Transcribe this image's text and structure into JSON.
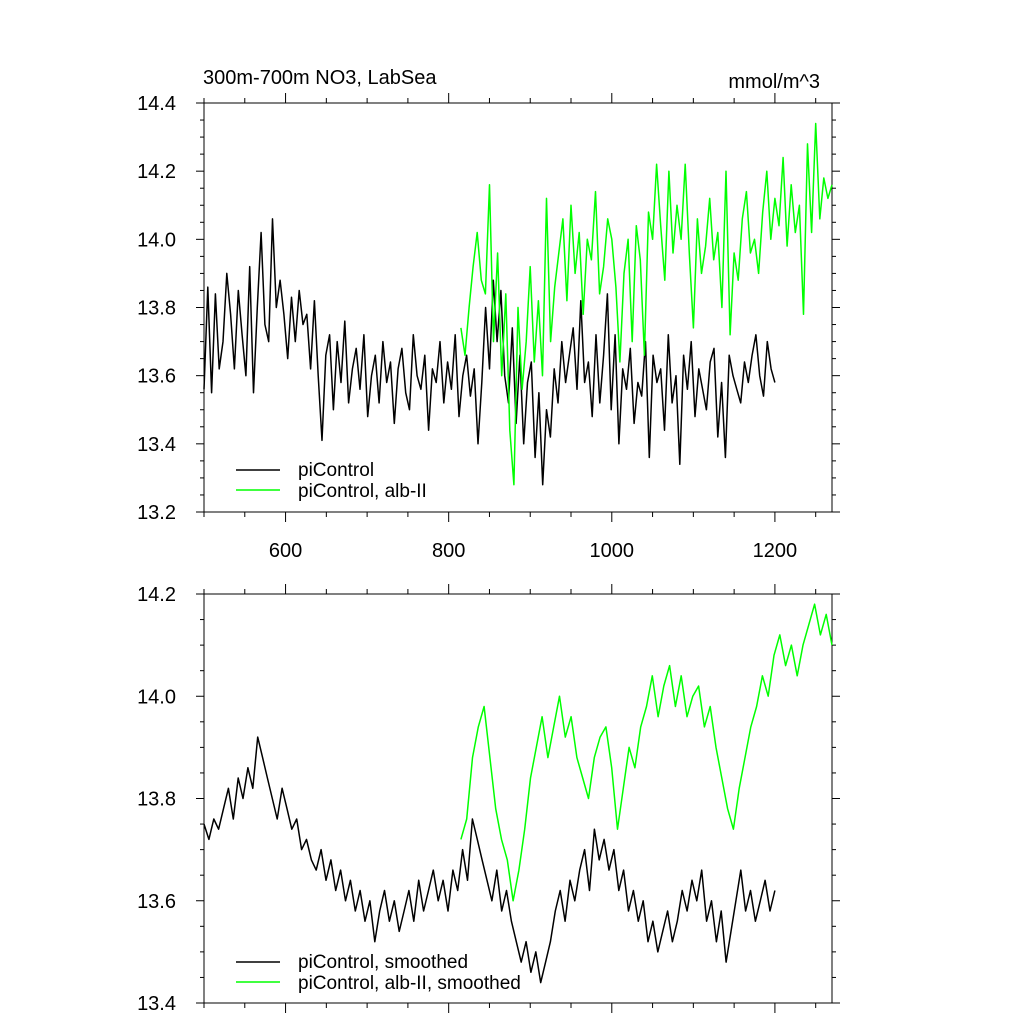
{
  "chart_data": [
    {
      "type": "line",
      "title": "300m-700m NO3, LabSea",
      "units_label": "mmol/m^3",
      "xlim": [
        500,
        1270
      ],
      "ylim": [
        13.2,
        14.4
      ],
      "x_ticks": [
        600,
        800,
        1000,
        1200
      ],
      "x_tick_labels": [
        "600",
        "800",
        "1000",
        "1200"
      ],
      "y_ticks": [
        13.2,
        13.4,
        13.6,
        13.8,
        14.0,
        14.2,
        14.4
      ],
      "y_tick_labels": [
        "13.2",
        "13.4",
        "13.6",
        "13.8",
        "14.0",
        "14.2",
        "14.4"
      ],
      "legend_position": "bottom-left",
      "series": [
        {
          "name": "piControl",
          "color": "#000000",
          "x_start": 500,
          "x_end": 1200,
          "values": [
            13.56,
            13.86,
            13.55,
            13.84,
            13.62,
            13.7,
            13.9,
            13.78,
            13.62,
            13.85,
            13.72,
            13.6,
            13.92,
            13.55,
            13.8,
            14.02,
            13.75,
            13.7,
            14.06,
            13.8,
            13.88,
            13.78,
            13.65,
            13.83,
            13.7,
            13.85,
            13.75,
            13.78,
            13.62,
            13.82,
            13.6,
            13.41,
            13.66,
            13.72,
            13.5,
            13.7,
            13.58,
            13.76,
            13.52,
            13.62,
            13.68,
            13.56,
            13.72,
            13.48,
            13.6,
            13.66,
            13.52,
            13.7,
            13.58,
            13.64,
            13.46,
            13.62,
            13.68,
            13.55,
            13.5,
            13.72,
            13.6,
            13.56,
            13.66,
            13.44,
            13.62,
            13.58,
            13.7,
            13.52,
            13.64,
            13.56,
            13.72,
            13.48,
            13.6,
            13.66,
            13.54,
            13.62,
            13.4,
            13.58,
            13.8,
            13.62,
            13.88,
            13.7,
            13.85,
            13.6,
            13.52,
            13.74,
            13.46,
            13.66,
            13.4,
            13.58,
            13.64,
            13.36,
            13.55,
            13.28,
            13.5,
            13.42,
            13.62,
            13.52,
            13.7,
            13.58,
            13.66,
            13.74,
            13.56,
            13.82,
            13.58,
            13.64,
            13.48,
            13.72,
            13.52,
            13.66,
            13.84,
            13.5,
            13.72,
            13.4,
            13.62,
            13.56,
            13.68,
            13.46,
            13.58,
            13.54,
            13.7,
            13.36,
            13.66,
            13.58,
            13.62,
            13.44,
            13.72,
            13.52,
            13.6,
            13.34,
            13.66,
            13.56,
            13.7,
            13.48,
            13.62,
            13.56,
            13.5,
            13.64,
            13.68,
            13.42,
            13.58,
            13.36,
            13.66,
            13.6,
            13.56,
            13.52,
            13.64,
            13.58,
            13.66,
            13.72,
            13.6,
            13.54,
            13.7,
            13.62,
            13.58
          ]
        },
        {
          "name": "piControl, alb-II",
          "color": "#00ff00",
          "x_start": 815,
          "x_end": 1270,
          "values": [
            13.74,
            13.66,
            13.8,
            13.92,
            14.02,
            13.88,
            13.84,
            14.16,
            13.7,
            13.96,
            13.6,
            13.84,
            13.44,
            13.28,
            13.8,
            13.56,
            13.7,
            13.92,
            13.64,
            13.82,
            13.6,
            14.12,
            13.7,
            13.86,
            13.96,
            14.06,
            13.82,
            14.1,
            13.9,
            14.02,
            13.78,
            14.0,
            13.94,
            14.14,
            13.84,
            13.92,
            14.06,
            14.0,
            13.86,
            13.64,
            13.9,
            14.0,
            13.7,
            14.04,
            13.94,
            13.66,
            14.08,
            14.0,
            14.22,
            14.04,
            13.88,
            14.2,
            13.96,
            14.1,
            14.0,
            14.22,
            13.96,
            13.74,
            14.06,
            13.9,
            13.98,
            14.12,
            13.94,
            14.02,
            13.8,
            14.2,
            13.72,
            13.96,
            13.88,
            14.06,
            14.14,
            13.96,
            14.0,
            13.9,
            14.08,
            14.2,
            14.0,
            14.12,
            14.04,
            14.24,
            13.98,
            14.16,
            14.02,
            14.1,
            13.78,
            14.28,
            14.02,
            14.34,
            14.06,
            14.18,
            14.12,
            14.16
          ]
        }
      ]
    },
    {
      "type": "line",
      "xlim": [
        500,
        1270
      ],
      "ylim": [
        13.4,
        14.2
      ],
      "x_ticks": [
        600,
        800,
        1000,
        1200
      ],
      "y_ticks": [
        13.4,
        13.6,
        13.8,
        14.0,
        14.2
      ],
      "y_tick_labels": [
        "13.4",
        "13.6",
        "13.8",
        "14.0",
        "14.2"
      ],
      "legend_position": "bottom-left",
      "series": [
        {
          "name": "piControl, smoothed",
          "color": "#000000",
          "x_start": 500,
          "x_end": 1200,
          "values": [
            13.75,
            13.72,
            13.76,
            13.74,
            13.78,
            13.82,
            13.76,
            13.84,
            13.8,
            13.86,
            13.82,
            13.92,
            13.88,
            13.84,
            13.8,
            13.76,
            13.82,
            13.78,
            13.74,
            13.76,
            13.7,
            13.72,
            13.68,
            13.66,
            13.7,
            13.64,
            13.68,
            13.62,
            13.66,
            13.6,
            13.64,
            13.58,
            13.62,
            13.56,
            13.6,
            13.52,
            13.58,
            13.62,
            13.56,
            13.6,
            13.54,
            13.58,
            13.62,
            13.56,
            13.64,
            13.58,
            13.62,
            13.66,
            13.6,
            13.64,
            13.58,
            13.66,
            13.62,
            13.7,
            13.64,
            13.76,
            13.72,
            13.68,
            13.64,
            13.6,
            13.66,
            13.58,
            13.62,
            13.56,
            13.52,
            13.48,
            13.52,
            13.46,
            13.5,
            13.44,
            13.48,
            13.52,
            13.58,
            13.62,
            13.56,
            13.64,
            13.6,
            13.66,
            13.7,
            13.62,
            13.74,
            13.68,
            13.72,
            13.66,
            13.7,
            13.62,
            13.66,
            13.58,
            13.62,
            13.56,
            13.6,
            13.52,
            13.56,
            13.5,
            13.54,
            13.58,
            13.52,
            13.56,
            13.62,
            13.58,
            13.64,
            13.6,
            13.66,
            13.56,
            13.6,
            13.52,
            13.58,
            13.48,
            13.54,
            13.6,
            13.66,
            13.58,
            13.62,
            13.56,
            13.6,
            13.64,
            13.58,
            13.62
          ]
        },
        {
          "name": "piControl, alb-II, smoothed",
          "color": "#00ff00",
          "x_start": 815,
          "x_end": 1270,
          "values": [
            13.72,
            13.76,
            13.88,
            13.94,
            13.98,
            13.88,
            13.78,
            13.72,
            13.68,
            13.6,
            13.66,
            13.74,
            13.84,
            13.9,
            13.96,
            13.88,
            13.94,
            14.0,
            13.92,
            13.96,
            13.88,
            13.84,
            13.8,
            13.88,
            13.92,
            13.94,
            13.86,
            13.74,
            13.82,
            13.9,
            13.86,
            13.94,
            13.98,
            14.04,
            13.96,
            14.02,
            14.06,
            13.98,
            14.04,
            13.96,
            14.0,
            14.02,
            13.94,
            13.98,
            13.9,
            13.84,
            13.78,
            13.74,
            13.82,
            13.88,
            13.94,
            13.98,
            14.04,
            14.0,
            14.08,
            14.12,
            14.06,
            14.1,
            14.04,
            14.1,
            14.14,
            14.18,
            14.12,
            14.16,
            14.1
          ]
        }
      ]
    }
  ]
}
